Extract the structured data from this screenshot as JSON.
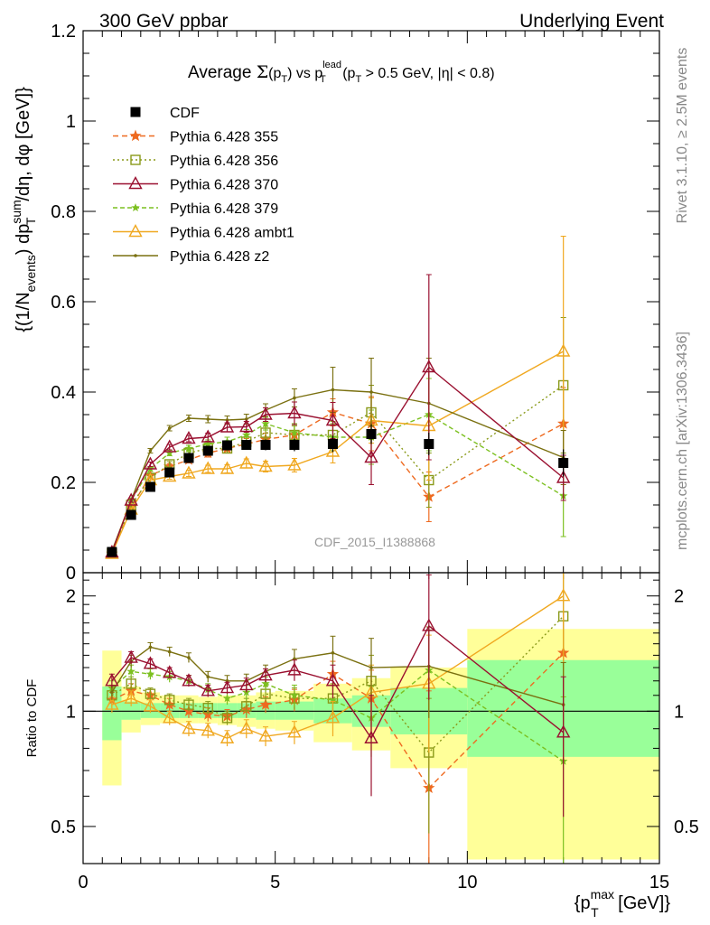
{
  "header": {
    "left": "300 GeV ppbar",
    "right": "Underlying Event"
  },
  "side_labels": {
    "rivet": "Rivet 3.1.10, ≥ 2.5M events",
    "mcplots": "mcplots.cern.ch [arXiv:1306.3436]"
  },
  "chart_data": {
    "type": "line",
    "title": "Average Σ(pT) vs pT^lead (pT > 0.5 GeV, |η| < 0.8)",
    "title_parts": {
      "a": "Average ",
      "sigma": "Σ",
      "b": "(p",
      "sub_T1": "T",
      "c": ") vs p",
      "sup_lead": "lead",
      "sub_T2": "T",
      "d": " (p",
      "sub_T3": "T",
      "e": " > 0.5 GeV, |η| < 0.8)"
    },
    "watermark": "CDF_2015_I1388868",
    "xlabel_parts": {
      "a": "{p",
      "sup": "max",
      "sub": "T",
      "b": " [GeV]}"
    },
    "ylabel_parts": {
      "a": "{(1/N",
      "sub_events": "events",
      "b": ") dp",
      "sup_sum": "sum",
      "sub_T": "T",
      "c": "/dη, dφ [GeV]}"
    },
    "ratio_ylabel": "Ratio to CDF",
    "xlim": [
      0,
      15
    ],
    "ylim": [
      0,
      1.2
    ],
    "ratio_ylim": [
      0.4,
      2.3
    ],
    "x_ticks": [
      0,
      5,
      10,
      15
    ],
    "y_ticks": [
      0,
      0.2,
      0.4,
      0.6,
      0.8,
      1,
      1.2
    ],
    "y_tick_labels": [
      "0",
      "0.2",
      "0.4",
      "0.6",
      "0.8",
      "1",
      "1.2"
    ],
    "ratio_ticks": [
      0.5,
      1,
      2
    ],
    "ratio_tick_labels": [
      "0.5",
      "1",
      "2"
    ],
    "x": [
      0.75,
      1.25,
      1.75,
      2.25,
      2.75,
      3.25,
      3.75,
      4.25,
      4.75,
      5.5,
      6.5,
      7.5,
      9,
      12.5
    ],
    "bins": [
      [
        0.5,
        1
      ],
      [
        1,
        1.5
      ],
      [
        1.5,
        2
      ],
      [
        2,
        2.5
      ],
      [
        2.5,
        3
      ],
      [
        3,
        3.5
      ],
      [
        3.5,
        4
      ],
      [
        4,
        4.5
      ],
      [
        4.5,
        5
      ],
      [
        5,
        6
      ],
      [
        6,
        7
      ],
      [
        7,
        8
      ],
      [
        8,
        10
      ],
      [
        10,
        15
      ]
    ],
    "series": [
      {
        "name": "CDF",
        "marker": "square-filled",
        "dash": "",
        "color": "#000000",
        "values": [
          0.046,
          0.128,
          0.19,
          0.222,
          0.254,
          0.27,
          0.282,
          0.283,
          0.283,
          0.283,
          0.285,
          0.307,
          0.285,
          0.243
        ],
        "errors": [
          0.004,
          0.005,
          0.006,
          0.007,
          0.008,
          0.009,
          0.01,
          0.011,
          0.012,
          0.014,
          0.018,
          0.022,
          0.025,
          0.03
        ]
      },
      {
        "name": "Pythia 6.428 355",
        "marker": "star",
        "dash": "6,4",
        "color": "#ee6a20",
        "values": [
          0.042,
          0.145,
          0.215,
          0.235,
          0.25,
          0.265,
          0.275,
          0.285,
          0.295,
          0.305,
          0.355,
          0.33,
          0.168,
          0.33
        ],
        "errors": [
          0.003,
          0.004,
          0.005,
          0.006,
          0.007,
          0.009,
          0.01,
          0.012,
          0.014,
          0.02,
          0.03,
          0.06,
          0.055,
          0.08
        ]
      },
      {
        "name": "Pythia 6.428 356",
        "marker": "square-open",
        "dash": "2,3",
        "color": "#8a9a1a",
        "values": [
          0.043,
          0.15,
          0.21,
          0.24,
          0.265,
          0.275,
          0.275,
          0.29,
          0.31,
          0.305,
          0.305,
          0.355,
          0.205,
          0.415
        ],
        "errors": [
          0.003,
          0.004,
          0.005,
          0.006,
          0.007,
          0.009,
          0.01,
          0.012,
          0.014,
          0.02,
          0.03,
          0.06,
          0.06,
          0.15
        ]
      },
      {
        "name": "Pythia 6.428 370",
        "marker": "triangle-open",
        "dash": "",
        "color": "#9a1030",
        "values": [
          0.045,
          0.16,
          0.24,
          0.278,
          0.297,
          0.3,
          0.322,
          0.323,
          0.35,
          0.353,
          0.337,
          0.255,
          0.455,
          0.21
        ],
        "errors": [
          0.003,
          0.004,
          0.005,
          0.006,
          0.007,
          0.009,
          0.01,
          0.012,
          0.015,
          0.025,
          0.04,
          0.06,
          0.205,
          0.05
        ]
      },
      {
        "name": "Pythia 6.428 379",
        "marker": "star-small",
        "dash": "5,3",
        "color": "#7cc020",
        "values": [
          0.044,
          0.16,
          0.23,
          0.265,
          0.275,
          0.285,
          0.29,
          0.305,
          0.33,
          0.31,
          0.3,
          0.3,
          0.35,
          0.17
        ],
        "errors": [
          0.003,
          0.004,
          0.005,
          0.006,
          0.007,
          0.009,
          0.01,
          0.012,
          0.014,
          0.02,
          0.03,
          0.06,
          0.08,
          0.09
        ]
      },
      {
        "name": "Pythia 6.428 ambt1",
        "marker": "triangle-open",
        "dash": "",
        "color": "#f0a820",
        "values": [
          0.042,
          0.14,
          0.205,
          0.213,
          0.22,
          0.23,
          0.23,
          0.242,
          0.235,
          0.238,
          0.268,
          0.337,
          0.325,
          0.49
        ],
        "errors": [
          0.003,
          0.004,
          0.005,
          0.006,
          0.007,
          0.008,
          0.009,
          0.01,
          0.012,
          0.015,
          0.025,
          0.05,
          0.12,
          0.255
        ]
      },
      {
        "name": "Pythia 6.428 z2",
        "marker": "dot",
        "dash": "",
        "color": "#7a7010",
        "values": [
          0.048,
          0.16,
          0.27,
          0.32,
          0.342,
          0.34,
          0.338,
          0.34,
          0.36,
          0.387,
          0.405,
          0.4,
          0.375,
          0.255
        ],
        "errors": [
          0.003,
          0.004,
          0.005,
          0.006,
          0.007,
          0.008,
          0.009,
          0.011,
          0.014,
          0.02,
          0.05,
          0.075,
          0.1,
          0.06
        ]
      }
    ],
    "ratio_series": [
      {
        "name": "Pythia 6.428 355",
        "values": [
          1.07,
          1.13,
          1.1,
          1.04,
          1.0,
          0.98,
          0.97,
          1.01,
          1.04,
          1.07,
          1.25,
          1.08,
          0.63,
          1.42
        ],
        "errors": [
          0.05,
          0.05,
          0.04,
          0.04,
          0.04,
          0.04,
          0.04,
          0.05,
          0.05,
          0.07,
          0.1,
          0.2,
          0.5,
          0.4
        ]
      },
      {
        "name": "Pythia 6.428 356",
        "values": [
          1.1,
          1.18,
          1.11,
          1.07,
          1.04,
          1.02,
          0.96,
          1.03,
          1.11,
          1.08,
          1.08,
          1.2,
          0.78,
          1.77
        ],
        "errors": [
          0.05,
          0.05,
          0.04,
          0.04,
          0.04,
          0.04,
          0.04,
          0.05,
          0.05,
          0.07,
          0.1,
          0.2,
          0.3,
          0.55
        ]
      },
      {
        "name": "Pythia 6.428 370",
        "values": [
          1.2,
          1.38,
          1.33,
          1.26,
          1.2,
          1.13,
          1.15,
          1.17,
          1.24,
          1.28,
          1.2,
          0.85,
          1.67,
          0.88
        ],
        "errors": [
          0.05,
          0.05,
          0.04,
          0.04,
          0.04,
          0.04,
          0.04,
          0.05,
          0.05,
          0.08,
          0.12,
          0.25,
          0.6,
          0.35
        ]
      },
      {
        "name": "Pythia 6.428 379",
        "values": [
          1.15,
          1.27,
          1.25,
          1.23,
          1.2,
          1.14,
          1.08,
          1.12,
          1.18,
          1.1,
          1.07,
          0.96,
          1.28,
          0.74
        ],
        "errors": [
          0.05,
          0.05,
          0.04,
          0.04,
          0.04,
          0.04,
          0.04,
          0.05,
          0.05,
          0.07,
          0.1,
          0.2,
          0.35,
          0.35
        ]
      },
      {
        "name": "Pythia 6.428 ambt1",
        "values": [
          1.04,
          1.08,
          1.03,
          0.96,
          0.9,
          0.89,
          0.85,
          0.9,
          0.86,
          0.88,
          0.96,
          1.12,
          1.18,
          2.0
        ],
        "errors": [
          0.05,
          0.05,
          0.04,
          0.04,
          0.04,
          0.04,
          0.04,
          0.05,
          0.05,
          0.06,
          0.1,
          0.2,
          0.4,
          1.0
        ]
      },
      {
        "name": "Pythia 6.428 z2",
        "values": [
          1.12,
          1.35,
          1.47,
          1.43,
          1.38,
          1.23,
          1.2,
          1.2,
          1.27,
          1.37,
          1.42,
          1.3,
          1.31,
          1.04
        ],
        "errors": [
          0.05,
          0.05,
          0.04,
          0.04,
          0.04,
          0.04,
          0.04,
          0.05,
          0.05,
          0.08,
          0.15,
          0.25,
          0.35,
          0.3
        ]
      }
    ],
    "ratio_bands": {
      "yellow": [
        [
          0.64,
          1.44
        ],
        [
          0.88,
          1.16
        ],
        [
          0.92,
          1.12
        ],
        [
          0.93,
          1.1
        ],
        [
          0.93,
          1.1
        ],
        [
          0.93,
          1.09
        ],
        [
          0.92,
          1.1
        ],
        [
          0.91,
          1.1
        ],
        [
          0.9,
          1.12
        ],
        [
          0.89,
          1.13
        ],
        [
          0.83,
          1.18
        ],
        [
          0.79,
          1.22
        ],
        [
          0.71,
          1.3
        ],
        [
          0.41,
          1.64
        ]
      ],
      "green": [
        [
          0.84,
          1.16
        ],
        [
          0.95,
          1.06
        ],
        [
          0.96,
          1.05
        ],
        [
          0.96,
          1.05
        ],
        [
          0.96,
          1.05
        ],
        [
          0.96,
          1.05
        ],
        [
          0.96,
          1.05
        ],
        [
          0.96,
          1.05
        ],
        [
          0.95,
          1.06
        ],
        [
          0.95,
          1.06
        ],
        [
          0.93,
          1.08
        ],
        [
          0.91,
          1.1
        ],
        [
          0.87,
          1.15
        ],
        [
          0.76,
          1.36
        ]
      ]
    }
  }
}
